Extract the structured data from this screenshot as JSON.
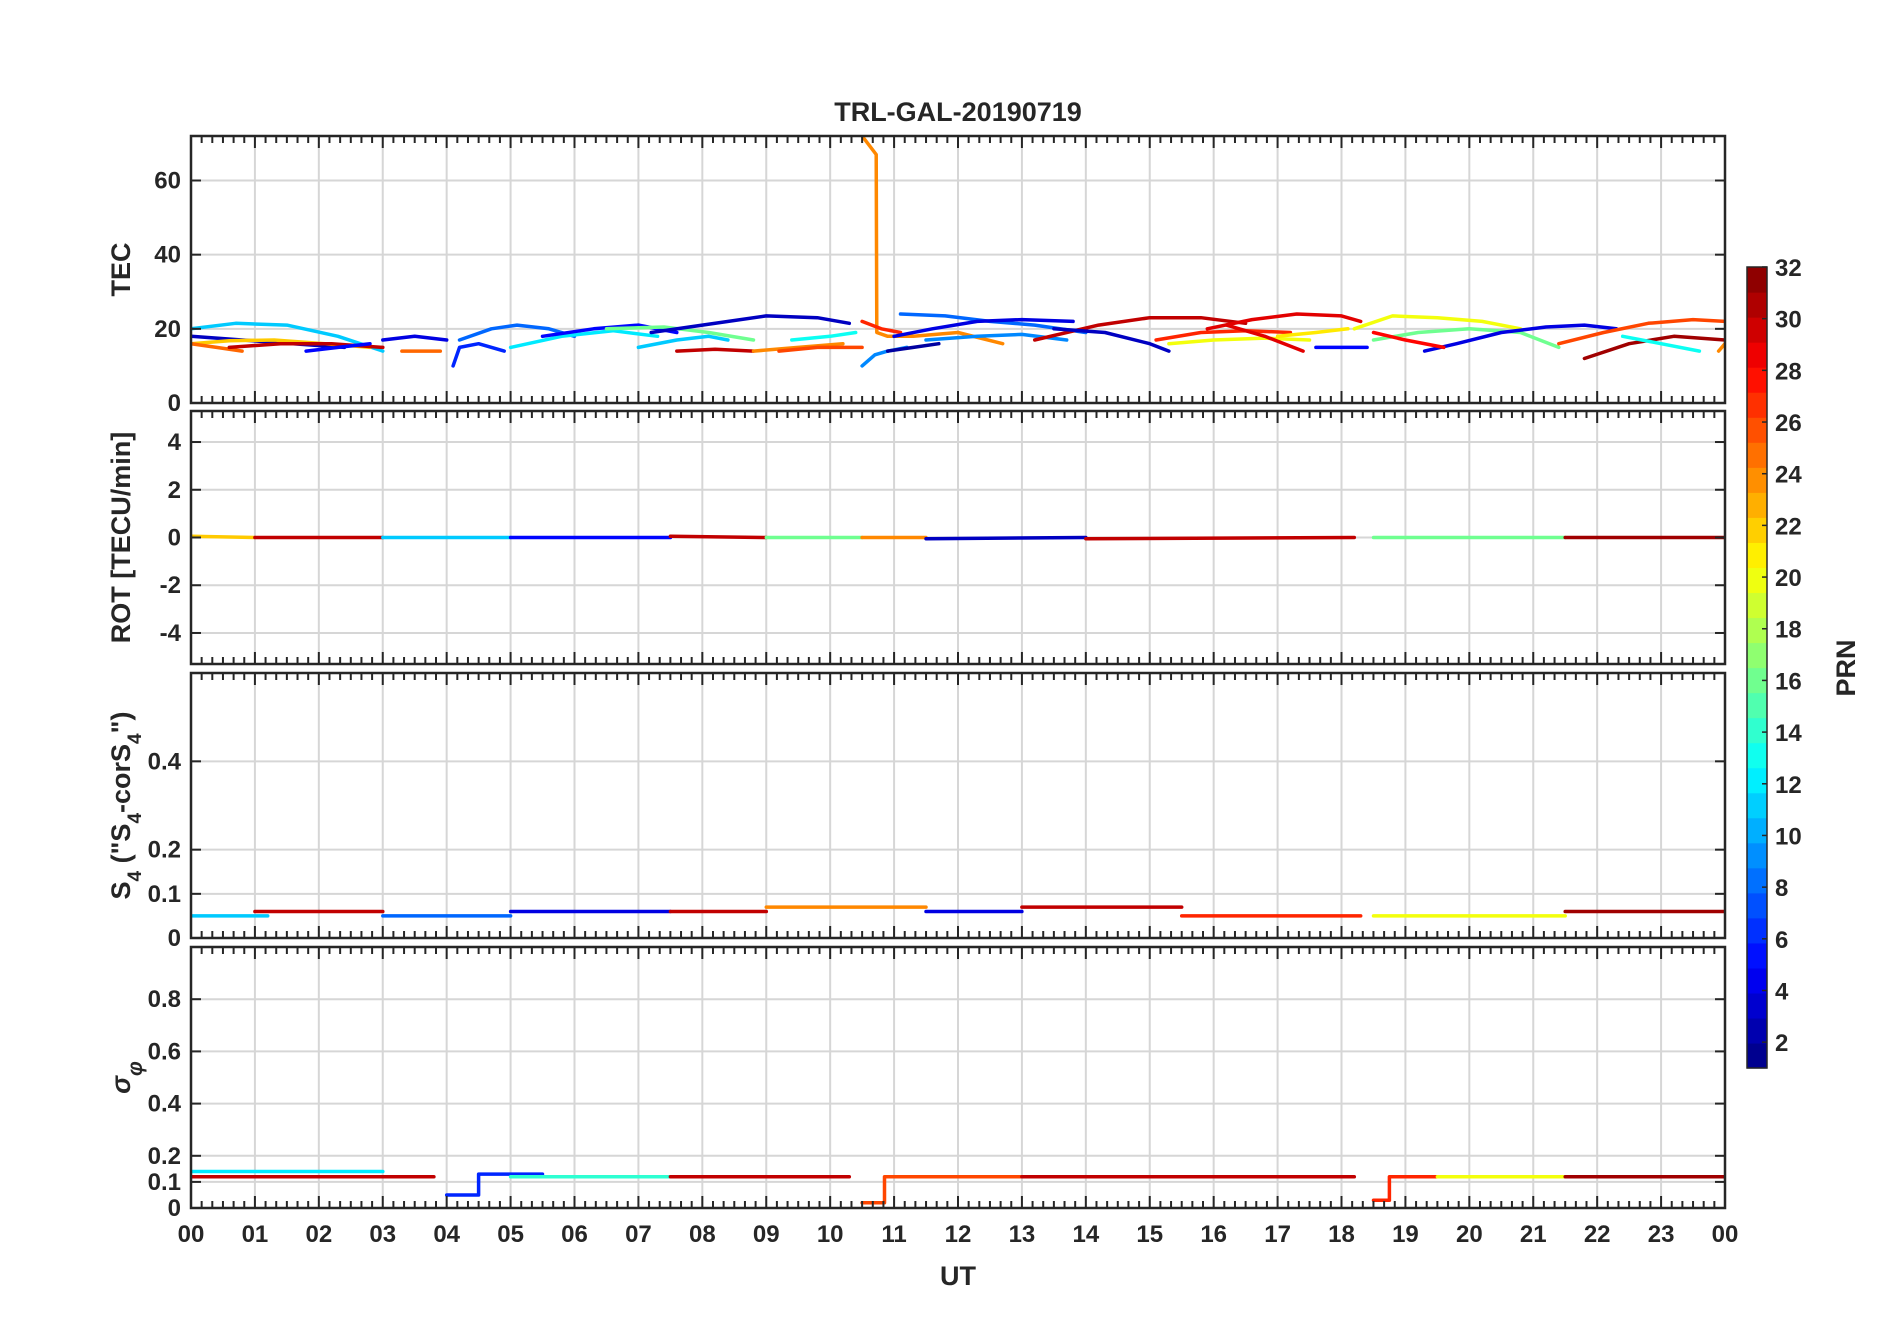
{
  "chart_data": {
    "type": "line",
    "title": "TRL-GAL-20190719",
    "xlabel": "UT",
    "x_ticks": [
      "00",
      "01",
      "02",
      "03",
      "04",
      "05",
      "06",
      "07",
      "08",
      "09",
      "10",
      "11",
      "12",
      "13",
      "14",
      "15",
      "16",
      "17",
      "18",
      "19",
      "20",
      "21",
      "22",
      "23",
      "00"
    ],
    "xlim": [
      0,
      24
    ],
    "grid": true,
    "colorbar": {
      "label": "PRN",
      "range": [
        1,
        32
      ],
      "ticks": [
        2,
        4,
        6,
        8,
        10,
        12,
        14,
        16,
        18,
        20,
        22,
        24,
        26,
        28,
        30,
        32
      ],
      "colormap": "jet"
    },
    "panels": [
      {
        "id": "tec",
        "ylabel": "TEC",
        "ylim": [
          0,
          72
        ],
        "yticks": [
          0,
          20,
          40,
          60
        ],
        "series": [
          {
            "prn": 11,
            "x": [
              0.0,
              0.7,
              1.5,
              2.3,
              3.0
            ],
            "y": [
              20,
              21.5,
              21,
              18,
              14
            ]
          },
          {
            "prn": 3,
            "x": [
              0.0,
              0.8,
              1.6,
              2.4
            ],
            "y": [
              18,
              17,
              16,
              15
            ]
          },
          {
            "prn": 22,
            "x": [
              0.0,
              0.6,
              1.3,
              2.1,
              2.8
            ],
            "y": [
              16,
              16.8,
              17,
              16,
              15
            ]
          },
          {
            "prn": 25,
            "x": [
              0.0,
              0.4,
              0.8
            ],
            "y": [
              16,
              15,
              14
            ]
          },
          {
            "prn": 30,
            "x": [
              0.6,
              1.4,
              2.2,
              3.0
            ],
            "y": [
              15,
              16,
              16,
              15
            ]
          },
          {
            "prn": 5,
            "x": [
              1.8,
              2.3,
              2.8
            ],
            "y": [
              14,
              15,
              16
            ]
          },
          {
            "prn": 4,
            "x": [
              3.0,
              3.5,
              4.0
            ],
            "y": [
              17,
              18,
              17
            ]
          },
          {
            "prn": 25,
            "x": [
              3.3,
              3.9
            ],
            "y": [
              14,
              14
            ]
          },
          {
            "prn": 6,
            "x": [
              4.1,
              4.2,
              4.5,
              4.9
            ],
            "y": [
              10,
              15,
              16,
              14
            ]
          },
          {
            "prn": 8,
            "x": [
              4.2,
              4.7,
              5.1,
              5.6,
              6.0
            ],
            "y": [
              17,
              20,
              21,
              20,
              18
            ]
          },
          {
            "prn": 12,
            "x": [
              5.0,
              5.8,
              6.6,
              7.3
            ],
            "y": [
              15,
              18,
              19.5,
              18
            ]
          },
          {
            "prn": 5,
            "x": [
              5.5,
              6.3,
              7.0,
              7.6
            ],
            "y": [
              18,
              20,
              21,
              19
            ]
          },
          {
            "prn": 16,
            "x": [
              6.5,
              7.4,
              8.1,
              8.8
            ],
            "y": [
              20,
              20.5,
              19,
              17
            ]
          },
          {
            "prn": 3,
            "x": [
              7.2,
              8.0,
              9.0,
              9.8,
              10.3
            ],
            "y": [
              19,
              21,
              23.5,
              23,
              21.5
            ]
          },
          {
            "prn": 11,
            "x": [
              7.0,
              7.6,
              8.1,
              8.4
            ],
            "y": [
              15,
              17,
              18,
              17
            ]
          },
          {
            "prn": 30,
            "x": [
              7.6,
              8.2,
              8.8
            ],
            "y": [
              14,
              14.5,
              14
            ]
          },
          {
            "prn": 24,
            "x": [
              8.8,
              9.5,
              10.2
            ],
            "y": [
              14,
              15,
              16
            ]
          },
          {
            "prn": 26,
            "x": [
              9.2,
              9.8,
              10.5
            ],
            "y": [
              14,
              15,
              15
            ]
          },
          {
            "prn": 13,
            "x": [
              9.4,
              10.0,
              10.4
            ],
            "y": [
              17,
              18,
              19
            ]
          },
          {
            "prn": 24,
            "x": [
              10.5,
              10.72,
              10.73,
              10.9,
              11.3,
              12.0,
              12.7
            ],
            "y": [
              72,
              67,
              19,
              18,
              18,
              19,
              16
            ]
          },
          {
            "prn": 27,
            "x": [
              10.5,
              10.8,
              11.1
            ],
            "y": [
              22,
              20,
              19
            ]
          },
          {
            "prn": 9,
            "x": [
              10.5,
              10.7,
              10.9,
              11.2
            ],
            "y": [
              10,
              13,
              14,
              15
            ]
          },
          {
            "prn": 8,
            "x": [
              11.1,
              11.8,
              12.5,
              13.2,
              14.0
            ],
            "y": [
              24,
              23.5,
              22,
              21,
              19
            ]
          },
          {
            "prn": 4,
            "x": [
              11.0,
              11.6,
              12.3,
              13.0,
              13.8
            ],
            "y": [
              18,
              20,
              22,
              22.5,
              22
            ]
          },
          {
            "prn": 9,
            "x": [
              11.5,
              12.3,
              13.0,
              13.7
            ],
            "y": [
              17,
              18,
              18.5,
              17
            ]
          },
          {
            "prn": 2,
            "x": [
              10.9,
              11.3,
              11.7
            ],
            "y": [
              14,
              15,
              16
            ]
          },
          {
            "prn": 30,
            "x": [
              13.2,
              14.2,
              15.0,
              15.8,
              16.5
            ],
            "y": [
              17,
              21,
              23,
              23,
              21.5
            ]
          },
          {
            "prn": 3,
            "x": [
              13.5,
              14.3,
              15.0,
              15.3
            ],
            "y": [
              20,
              19,
              16,
              14
            ]
          },
          {
            "prn": 27,
            "x": [
              15.1,
              15.8,
              16.5,
              17.2
            ],
            "y": [
              17,
              19,
              19.5,
              19
            ]
          },
          {
            "prn": 20,
            "x": [
              15.3,
              16.0,
              16.8,
              17.5
            ],
            "y": [
              16,
              17,
              17.5,
              17
            ]
          },
          {
            "prn": 29,
            "x": [
              15.9,
              16.6,
              17.3,
              18.0,
              18.3
            ],
            "y": [
              20,
              22.5,
              24,
              23.5,
              22
            ]
          },
          {
            "prn": 29,
            "x": [
              16.2,
              16.8,
              17.4
            ],
            "y": [
              21,
              18,
              14
            ]
          },
          {
            "prn": 21,
            "x": [
              17.0,
              17.6,
              18.1
            ],
            "y": [
              18,
              19,
              20
            ]
          },
          {
            "prn": 5,
            "x": [
              17.6,
              18.4
            ],
            "y": [
              15,
              15
            ]
          },
          {
            "prn": 20,
            "x": [
              18.2,
              18.8,
              19.5,
              20.2,
              20.8
            ],
            "y": [
              20,
              23.5,
              23,
              22,
              20
            ]
          },
          {
            "prn": 16,
            "x": [
              18.5,
              19.2,
              20.0,
              20.8,
              21.4
            ],
            "y": [
              17,
              19,
              20,
              19,
              15
            ]
          },
          {
            "prn": 4,
            "x": [
              19.3,
              19.8,
              20.5,
              21.2,
              21.8,
              22.3
            ],
            "y": [
              14,
              16,
              19,
              20.5,
              21,
              20
            ]
          },
          {
            "prn": 28,
            "x": [
              18.5,
              19.0,
              19.6
            ],
            "y": [
              19,
              17,
              15
            ]
          },
          {
            "prn": 26,
            "x": [
              21.4,
              22.1,
              22.8,
              23.5,
              24.0
            ],
            "y": [
              16,
              19,
              21.5,
              22.5,
              22
            ]
          },
          {
            "prn": 31,
            "x": [
              21.8,
              22.5,
              23.2,
              24.0
            ],
            "y": [
              12,
              16,
              18,
              17
            ]
          },
          {
            "prn": 13,
            "x": [
              22.4,
              23.0,
              23.6
            ],
            "y": [
              18,
              16,
              14
            ]
          },
          {
            "prn": 24,
            "x": [
              23.9,
              24.0
            ],
            "y": [
              14,
              16
            ]
          }
        ]
      },
      {
        "id": "rot",
        "ylabel": "ROT [TECU/min]",
        "ylim": [
          -5.3,
          5.3
        ],
        "yticks": [
          -4,
          -2,
          0,
          2,
          4
        ],
        "series": [
          {
            "prn": 22,
            "x": [
              0.0,
              1.0
            ],
            "y": [
              0.05,
              0.0
            ]
          },
          {
            "prn": 30,
            "x": [
              1.0,
              3.0
            ],
            "y": [
              0.0,
              0.0
            ]
          },
          {
            "prn": 11,
            "x": [
              3.0,
              5.0
            ],
            "y": [
              0.0,
              0.0
            ]
          },
          {
            "prn": 5,
            "x": [
              5.0,
              7.5
            ],
            "y": [
              0.0,
              0.0
            ]
          },
          {
            "prn": 30,
            "x": [
              7.5,
              9.0
            ],
            "y": [
              0.05,
              0.0
            ]
          },
          {
            "prn": 16,
            "x": [
              9.0,
              10.5
            ],
            "y": [
              0.0,
              0.0
            ]
          },
          {
            "prn": 24,
            "x": [
              10.5,
              11.5
            ],
            "y": [
              0.0,
              0.0
            ]
          },
          {
            "prn": 3,
            "x": [
              11.5,
              14.0
            ],
            "y": [
              -0.05,
              0.0
            ]
          },
          {
            "prn": 30,
            "x": [
              14.0,
              18.2
            ],
            "y": [
              -0.05,
              0.0
            ]
          },
          {
            "prn": 16,
            "x": [
              18.5,
              21.5
            ],
            "y": [
              0.0,
              0.0
            ]
          },
          {
            "prn": 31,
            "x": [
              21.5,
              24.0
            ],
            "y": [
              0.0,
              0.0
            ]
          }
        ]
      },
      {
        "id": "s4",
        "ylabel": "S4 (\"S4-corS4\")",
        "ylim": [
          0,
          0.6
        ],
        "yticks": [
          0,
          0.1,
          0.2,
          0.4
        ],
        "series": [
          {
            "prn": 11,
            "x": [
              0.0,
              1.2
            ],
            "y": [
              0.05,
              0.05
            ]
          },
          {
            "prn": 30,
            "x": [
              1.0,
              3.0
            ],
            "y": [
              0.06,
              0.06
            ]
          },
          {
            "prn": 8,
            "x": [
              3.0,
              5.0
            ],
            "y": [
              0.05,
              0.05
            ]
          },
          {
            "prn": 4,
            "x": [
              5.0,
              7.5
            ],
            "y": [
              0.06,
              0.06
            ]
          },
          {
            "prn": 30,
            "x": [
              7.5,
              9.0
            ],
            "y": [
              0.06,
              0.06
            ]
          },
          {
            "prn": 24,
            "x": [
              9.0,
              11.5
            ],
            "y": [
              0.07,
              0.07
            ]
          },
          {
            "prn": 4,
            "x": [
              11.5,
              13.0
            ],
            "y": [
              0.06,
              0.06
            ]
          },
          {
            "prn": 30,
            "x": [
              13.0,
              15.5
            ],
            "y": [
              0.07,
              0.07
            ]
          },
          {
            "prn": 27,
            "x": [
              15.5,
              18.3
            ],
            "y": [
              0.05,
              0.05
            ]
          },
          {
            "prn": 20,
            "x": [
              18.5,
              21.5
            ],
            "y": [
              0.05,
              0.05
            ]
          },
          {
            "prn": 31,
            "x": [
              21.5,
              24.0
            ],
            "y": [
              0.06,
              0.06
            ]
          }
        ]
      },
      {
        "id": "sigma",
        "ylabel": "σφ",
        "ylim": [
          0,
          1
        ],
        "yticks": [
          0,
          0.1,
          0.2,
          0.4,
          0.6,
          0.8
        ],
        "series": [
          {
            "prn": 12,
            "x": [
              0.0,
              3.0
            ],
            "y": [
              0.14,
              0.14
            ]
          },
          {
            "prn": 30,
            "x": [
              0.0,
              3.8
            ],
            "y": [
              0.12,
              0.12
            ]
          },
          {
            "prn": 6,
            "x": [
              4.0,
              4.5,
              4.5,
              5.5
            ],
            "y": [
              0.05,
              0.05,
              0.13,
              0.13
            ]
          },
          {
            "prn": 14,
            "x": [
              5.0,
              7.5
            ],
            "y": [
              0.12,
              0.12
            ]
          },
          {
            "prn": 30,
            "x": [
              7.5,
              10.3
            ],
            "y": [
              0.12,
              0.12
            ]
          },
          {
            "prn": 26,
            "x": [
              10.5,
              10.85,
              10.85,
              13.0
            ],
            "y": [
              0.02,
              0.02,
              0.12,
              0.12
            ]
          },
          {
            "prn": 30,
            "x": [
              13.0,
              18.2
            ],
            "y": [
              0.12,
              0.12
            ]
          },
          {
            "prn": 27,
            "x": [
              18.5,
              18.75,
              18.75,
              19.5
            ],
            "y": [
              0.03,
              0.03,
              0.12,
              0.12
            ]
          },
          {
            "prn": 20,
            "x": [
              19.5,
              21.5
            ],
            "y": [
              0.12,
              0.12
            ]
          },
          {
            "prn": 31,
            "x": [
              21.5,
              24.0
            ],
            "y": [
              0.12,
              0.12
            ]
          }
        ]
      }
    ]
  }
}
